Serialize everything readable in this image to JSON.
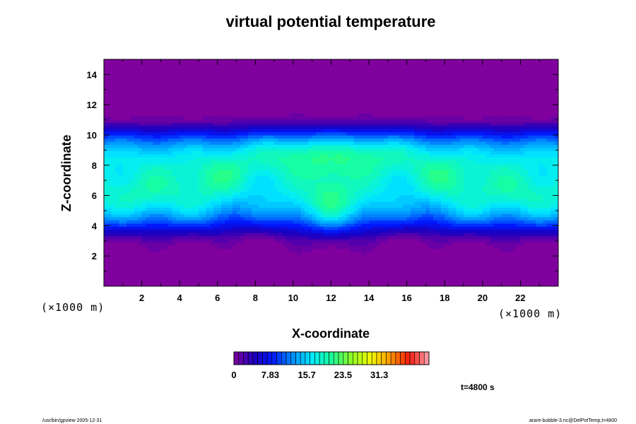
{
  "chart_data": {
    "type": "heatmap",
    "title": "virtual potential temperature",
    "xlabel": "X-coordinate",
    "ylabel": "Z-coordinate",
    "x_unit": "(×1000 m)",
    "y_unit": "(×1000 m)",
    "xlim": [
      0,
      24
    ],
    "ylim": [
      0,
      15
    ],
    "x_ticks": [
      2,
      4,
      6,
      8,
      10,
      12,
      14,
      16,
      18,
      20,
      22
    ],
    "y_ticks": [
      2,
      4,
      6,
      8,
      10,
      12,
      14
    ],
    "colorbar": {
      "min": 0,
      "max": 42,
      "levels": 41,
      "tick_values": [
        0,
        7.83,
        15.7,
        23.5,
        31.3
      ],
      "tick_labels": [
        "0",
        "7.83",
        "15.7",
        "23.5",
        "31.3"
      ]
    },
    "time_label": "t=4800 s",
    "footer_left": "/usr/bin/gpview 2005-12-31",
    "footer_right": "arare-bubble-3.nc@DelPotTemp,t=4800",
    "field_description": "symmetric about x=12: low values near z=0 and above z=13; broad band of ~15–22 between z=3 and z=11; maxima ~22 in a mushroom-shaped plume near x=9–15, z=7–10 and lobes near x=6, x=18 at z=7"
  }
}
